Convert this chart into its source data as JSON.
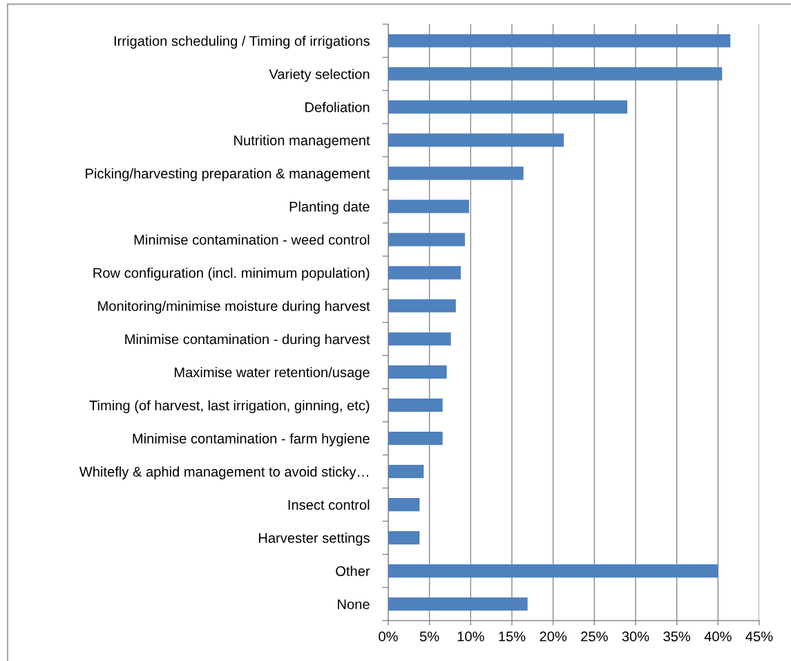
{
  "chart_data": {
    "type": "bar",
    "orientation": "horizontal",
    "categories": [
      "Irrigation scheduling / Timing of irrigations",
      "Variety selection",
      "Defoliation",
      "Nutrition management",
      "Picking/harvesting preparation & management",
      "Planting date",
      "Minimise contamination - weed control",
      "Row configuration (incl. minimum population)",
      "Monitoring/minimise moisture during harvest",
      "Minimise contamination - during harvest",
      "Maximise water retention/usage",
      "Timing (of harvest, last irrigation, ginning, etc)",
      "Minimise contamination - farm hygiene",
      "Whitefly & aphid management to avoid sticky…",
      "Insect control",
      "Harvester settings",
      "Other",
      "None"
    ],
    "values": [
      41.5,
      40.5,
      29.0,
      21.3,
      16.4,
      9.8,
      9.3,
      8.8,
      8.2,
      7.6,
      7.1,
      6.6,
      6.6,
      4.3,
      3.8,
      3.8,
      40.0,
      16.9
    ],
    "color": "#4f81bd",
    "xlim": [
      0,
      45
    ],
    "xticks": [
      {
        "value": 0,
        "label": "0%"
      },
      {
        "value": 5,
        "label": "5%"
      },
      {
        "value": 10,
        "label": "10%"
      },
      {
        "value": 15,
        "label": "15%"
      },
      {
        "value": 20,
        "label": "20%"
      },
      {
        "value": 25,
        "label": "25%"
      },
      {
        "value": 30,
        "label": "30%"
      },
      {
        "value": 35,
        "label": "35%"
      },
      {
        "value": 40,
        "label": "40%"
      },
      {
        "value": 45,
        "label": "45%"
      }
    ],
    "grid": "x"
  }
}
